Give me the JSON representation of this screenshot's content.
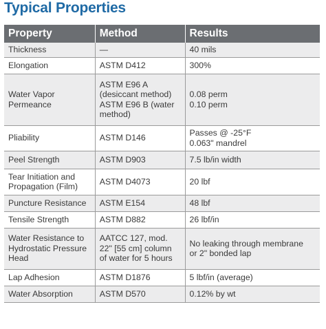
{
  "title": "Typical Properties",
  "headers": [
    "Property",
    "Method",
    "Results"
  ],
  "rows": [
    {
      "property": "Thickness",
      "method": "—",
      "results": "40 mils"
    },
    {
      "property": "Elongation",
      "method": "ASTM D412",
      "results": "300%"
    },
    {
      "property": "Water Vapor Permeance",
      "method": "ASTM E96 A (desiccant method) ASTM E96 B (water method)",
      "results": "0.08 perm 0.10 perm"
    },
    {
      "property": "Pliability",
      "method": "ASTM D146",
      "results": "Passes @ -25°F 0.063\" mandrel"
    },
    {
      "property": "Peel Strength",
      "method": "ASTM D903",
      "results": "7.5 lb/in width"
    },
    {
      "property": "Tear Initiation and Propagation (Film)",
      "method": "ASTM D4073",
      "results": "20 lbf"
    },
    {
      "property": "Puncture Resistance",
      "method": "ASTM E154",
      "results": "48 lbf"
    },
    {
      "property": "Tensile Strength",
      "method": "ASTM D882",
      "results": "26 lbf/in"
    },
    {
      "property": "Water Resistance to Hydrostatic Pressure Head",
      "method": "AATCC 127, mod. 22\" [55 cm] column of water for 5 hours",
      "results": "No leaking through membrane or 2\" bonded lap"
    },
    {
      "property": "Lap Adhesion",
      "method": "ASTM D1876",
      "results": "5 lbf/in (average)"
    },
    {
      "property": "Water Absorption",
      "method": "ASTM D570",
      "results": "0.12% by wt"
    }
  ],
  "colors": {
    "title": "#1f6aa5",
    "header_bg": "#6b6e72",
    "row_shade": "#ececed",
    "rule": "#9a9a9a"
  }
}
